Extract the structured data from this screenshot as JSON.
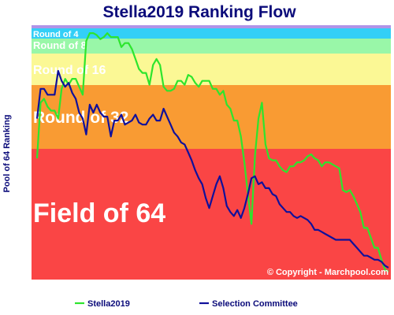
{
  "chart_data": {
    "type": "line",
    "title": "Stella2019 Ranking Flow",
    "ylabel": "Pool of 64 Ranking",
    "xlabel": "",
    "copyright": "© Copyright - Marchpool.com",
    "legend_position": "bottom",
    "bands": [
      {
        "label": "Field of 64",
        "color": "#fa4545"
      },
      {
        "label": "Round of 32",
        "color": "#f99b33"
      },
      {
        "label": "Round of 16",
        "color": "#fbf895"
      },
      {
        "label": "Round of 8",
        "color": "#99f7a8"
      },
      {
        "label": "Round of 4",
        "color": "#33cff7"
      },
      {
        "label": "",
        "color": "#b094e8"
      }
    ],
    "series": [
      {
        "name": "Stella2019",
        "color": "#2de52d",
        "values": [
          61,
          89,
          91,
          87,
          85,
          85,
          81,
          96,
          101,
          98,
          101,
          101,
          97,
          93,
          120,
          124,
          124,
          123,
          121,
          122,
          124,
          122,
          122,
          122,
          117,
          119,
          119,
          116,
          111,
          106,
          104,
          104,
          98,
          108,
          111,
          108,
          97,
          95,
          95,
          96,
          100,
          100,
          98,
          103,
          102,
          99,
          97,
          100,
          100,
          100,
          96,
          96,
          93,
          95,
          88,
          86,
          80,
          80,
          72,
          59,
          43,
          28,
          62,
          81,
          89,
          68,
          61,
          60,
          60,
          57,
          55,
          54,
          57,
          57,
          59,
          59,
          60,
          62,
          63,
          61,
          60,
          57,
          59,
          59,
          58,
          57,
          56,
          45,
          44,
          45,
          42,
          38,
          34,
          26,
          26,
          21,
          16,
          16,
          10,
          5,
          4
        ]
      },
      {
        "name": "Selection Committee",
        "color": "#10109b",
        "values": [
          81,
          96,
          96,
          93,
          93,
          93,
          105,
          100,
          97,
          99,
          94,
          91,
          84,
          81,
          73,
          88,
          84,
          88,
          84,
          82,
          82,
          72,
          80,
          80,
          83,
          78,
          79,
          80,
          83,
          79,
          78,
          78,
          81,
          83,
          80,
          80,
          86,
          82,
          78,
          74,
          72,
          69,
          68,
          64,
          60,
          55,
          51,
          48,
          41,
          36,
          42,
          48,
          52,
          46,
          37,
          34,
          32,
          35,
          31,
          36,
          43,
          51,
          52,
          48,
          49,
          46,
          46,
          43,
          42,
          38,
          36,
          34,
          34,
          32,
          31,
          32,
          31,
          30,
          28,
          25,
          25,
          24,
          23,
          22,
          21,
          20,
          20,
          20,
          20,
          20,
          18,
          16,
          14,
          12,
          12,
          11,
          10,
          10,
          9,
          7,
          6
        ]
      }
    ]
  }
}
